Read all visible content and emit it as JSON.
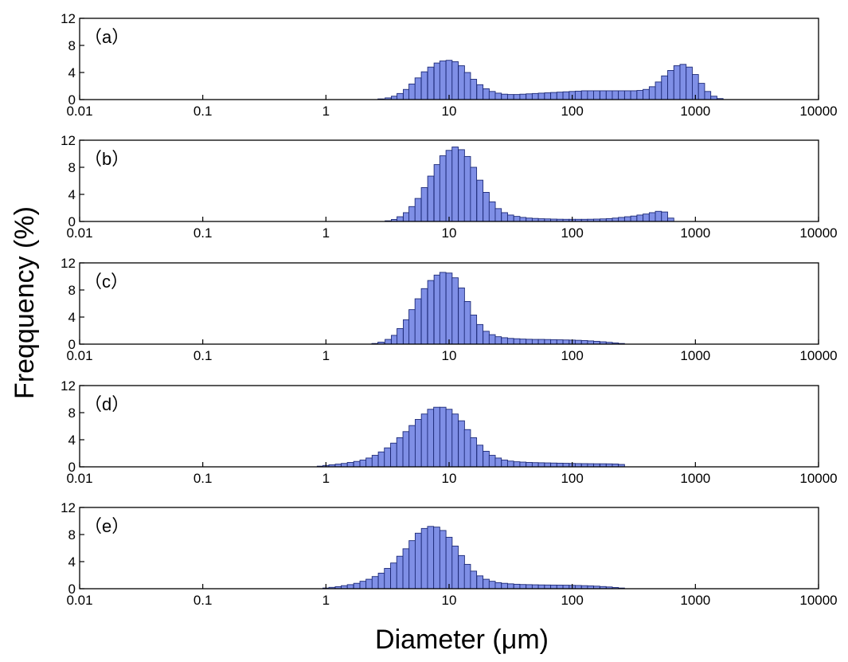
{
  "chart_data": {
    "type": "bar",
    "xlabel": "Diameter (μm)",
    "ylabel": "Freqquency (%)",
    "xscale": "log",
    "xlim": [
      0.01,
      10000
    ],
    "ylim": [
      0,
      12
    ],
    "xticks": [
      "0.01",
      "0.1",
      "1",
      "10",
      "100",
      "1000",
      "10000"
    ],
    "yticks": [
      "0",
      "4",
      "8",
      "12"
    ],
    "bin_sizes": [
      2.8,
      3.2,
      3.6,
      4.0,
      4.5,
      5.0,
      5.6,
      6.3,
      7.1,
      8.0,
      8.9,
      10,
      11.2,
      12.6,
      14.1,
      15.8,
      17.8,
      20,
      22.4,
      25.1,
      28.2,
      31.6,
      35.5,
      39.8,
      44.7,
      50.1,
      56.2,
      63.1,
      70.8,
      79.4,
      89.1,
      100,
      112,
      126,
      141,
      158,
      178,
      200,
      224,
      251,
      282,
      316,
      355,
      398,
      447,
      501,
      562,
      631,
      708,
      794,
      891,
      1000,
      1122,
      1259,
      1413,
      1585
    ],
    "panels": [
      {
        "label": "（a）",
        "x": [
          2.8,
          3.2,
          3.6,
          4.0,
          4.5,
          5.0,
          5.6,
          6.3,
          7.1,
          8.0,
          8.9,
          10,
          11.2,
          12.6,
          14.1,
          15.8,
          17.8,
          20,
          22.4,
          25.1,
          28.2,
          31.6,
          35.5,
          39.8,
          44.7,
          50.1,
          56.2,
          63.1,
          70.8,
          79.4,
          89.1,
          100,
          112,
          126,
          141,
          158,
          178,
          200,
          224,
          251,
          282,
          316,
          355,
          398,
          447,
          501,
          562,
          631,
          708,
          794,
          891,
          1000,
          1122,
          1259,
          1413,
          1585
        ],
        "values": [
          0.1,
          0.25,
          0.5,
          0.9,
          1.5,
          2.3,
          3.2,
          4.1,
          4.8,
          5.4,
          5.7,
          5.8,
          5.6,
          5.0,
          4.0,
          3.0,
          2.2,
          1.6,
          1.2,
          0.95,
          0.8,
          0.75,
          0.75,
          0.8,
          0.85,
          0.9,
          0.95,
          1.0,
          1.05,
          1.1,
          1.15,
          1.2,
          1.25,
          1.3,
          1.3,
          1.3,
          1.3,
          1.3,
          1.3,
          1.3,
          1.3,
          1.3,
          1.35,
          1.5,
          1.9,
          2.6,
          3.5,
          4.3,
          5.0,
          5.2,
          4.8,
          3.7,
          2.4,
          1.2,
          0.5,
          0.15
        ]
      },
      {
        "label": "（b）",
        "x": [
          3.2,
          3.6,
          4.0,
          4.5,
          5.0,
          5.6,
          6.3,
          7.1,
          8.0,
          8.9,
          10,
          11.2,
          12.6,
          14.1,
          15.8,
          17.8,
          20,
          22.4,
          25.1,
          28.2,
          31.6,
          35.5,
          39.8,
          44.7,
          50.1,
          56.2,
          63.1,
          70.8,
          79.4,
          89.1,
          100,
          112,
          126,
          141,
          158,
          178,
          200,
          224,
          251,
          282,
          316,
          355,
          398,
          447,
          501,
          562,
          631
        ],
        "values": [
          0.1,
          0.3,
          0.7,
          1.3,
          2.2,
          3.4,
          5.0,
          6.7,
          8.4,
          9.7,
          10.5,
          11.0,
          10.6,
          9.6,
          8.0,
          6.1,
          4.3,
          2.9,
          1.9,
          1.3,
          0.95,
          0.75,
          0.6,
          0.5,
          0.45,
          0.4,
          0.38,
          0.35,
          0.33,
          0.32,
          0.32,
          0.32,
          0.32,
          0.33,
          0.35,
          0.38,
          0.42,
          0.5,
          0.6,
          0.7,
          0.8,
          0.95,
          1.1,
          1.3,
          1.5,
          1.4,
          0.5
        ]
      },
      {
        "label": "（c）",
        "x": [
          2.5,
          2.8,
          3.2,
          3.6,
          4.0,
          4.5,
          5.0,
          5.6,
          6.3,
          7.1,
          8.0,
          8.9,
          10,
          11.2,
          12.6,
          14.1,
          15.8,
          17.8,
          20,
          22.4,
          25.1,
          28.2,
          31.6,
          35.5,
          39.8,
          44.7,
          50.1,
          56.2,
          63.1,
          70.8,
          79.4,
          89.1,
          100,
          112,
          126,
          141,
          158,
          178,
          200,
          224,
          251
        ],
        "values": [
          0.1,
          0.3,
          0.7,
          1.3,
          2.3,
          3.6,
          5.1,
          6.7,
          8.2,
          9.4,
          10.2,
          10.6,
          10.5,
          9.8,
          8.3,
          6.3,
          4.3,
          2.9,
          1.9,
          1.4,
          1.1,
          0.95,
          0.85,
          0.8,
          0.75,
          0.72,
          0.7,
          0.7,
          0.68,
          0.66,
          0.64,
          0.62,
          0.6,
          0.57,
          0.53,
          0.48,
          0.42,
          0.35,
          0.27,
          0.18,
          0.1
        ]
      },
      {
        "label": "（d）",
        "x": [
          0.9,
          1.0,
          1.12,
          1.26,
          1.41,
          1.58,
          1.78,
          2.0,
          2.24,
          2.51,
          2.82,
          3.16,
          3.55,
          3.98,
          4.47,
          5.01,
          5.62,
          6.31,
          7.08,
          7.94,
          8.91,
          10,
          11.2,
          12.6,
          14.1,
          15.8,
          17.8,
          20,
          22.4,
          25.1,
          28.2,
          31.6,
          35.5,
          39.8,
          44.7,
          50.1,
          56.2,
          63.1,
          70.8,
          79.4,
          89.1,
          100,
          112,
          126,
          141,
          158,
          178,
          200,
          224,
          251
        ],
        "values": [
          0.1,
          0.2,
          0.3,
          0.4,
          0.5,
          0.65,
          0.8,
          1.0,
          1.3,
          1.7,
          2.2,
          2.8,
          3.5,
          4.3,
          5.2,
          6.1,
          7.0,
          7.8,
          8.5,
          8.8,
          8.8,
          8.5,
          7.8,
          6.8,
          5.5,
          4.3,
          3.2,
          2.3,
          1.7,
          1.3,
          1.0,
          0.85,
          0.75,
          0.7,
          0.65,
          0.62,
          0.6,
          0.58,
          0.56,
          0.54,
          0.52,
          0.5,
          0.48,
          0.47,
          0.46,
          0.45,
          0.45,
          0.44,
          0.42,
          0.35
        ]
      },
      {
        "label": "（e）",
        "x": [
          1.0,
          1.12,
          1.26,
          1.41,
          1.58,
          1.78,
          2.0,
          2.24,
          2.51,
          2.82,
          3.16,
          3.55,
          3.98,
          4.47,
          5.01,
          5.62,
          6.31,
          7.08,
          7.94,
          8.91,
          10,
          11.2,
          12.6,
          14.1,
          15.8,
          17.8,
          20,
          22.4,
          25.1,
          28.2,
          31.6,
          35.5,
          39.8,
          44.7,
          50.1,
          56.2,
          63.1,
          70.8,
          79.4,
          89.1,
          100,
          112,
          126,
          141,
          158,
          178,
          200,
          224,
          251
        ],
        "values": [
          0.1,
          0.2,
          0.3,
          0.45,
          0.6,
          0.8,
          1.1,
          1.4,
          1.8,
          2.3,
          3.0,
          3.8,
          4.8,
          5.9,
          7.1,
          8.2,
          8.9,
          9.2,
          9.1,
          8.6,
          7.6,
          6.3,
          4.9,
          3.6,
          2.6,
          1.9,
          1.4,
          1.1,
          0.9,
          0.8,
          0.72,
          0.66,
          0.62,
          0.6,
          0.58,
          0.56,
          0.55,
          0.54,
          0.53,
          0.52,
          0.5,
          0.48,
          0.45,
          0.42,
          0.38,
          0.32,
          0.26,
          0.18,
          0.1
        ]
      }
    ]
  }
}
